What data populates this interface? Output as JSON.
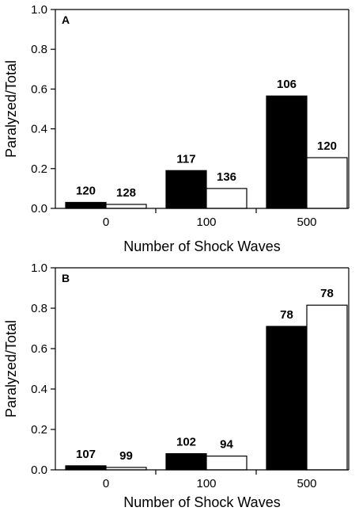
{
  "chart_data": [
    {
      "type": "bar",
      "panel_label": "A",
      "categories": [
        "0",
        "100",
        "500"
      ],
      "series": [
        {
          "values": [
            0.03,
            0.19,
            0.565
          ],
          "color": "#000000",
          "data_labels": [
            "120",
            "117",
            "106"
          ]
        },
        {
          "values": [
            0.02,
            0.1,
            0.255
          ],
          "color": "#ffffff",
          "data_labels": [
            "128",
            "136",
            "120"
          ]
        }
      ],
      "xlabel": "Number of Shock Waves",
      "ylabel": "Paralyzed/Total",
      "ylim": [
        0,
        1.0
      ],
      "yticks": [
        "0.0",
        "0.2",
        "0.4",
        "0.6",
        "0.8",
        "1.0"
      ],
      "grid": false
    },
    {
      "type": "bar",
      "panel_label": "B",
      "categories": [
        "0",
        "100",
        "500"
      ],
      "series": [
        {
          "values": [
            0.02,
            0.08,
            0.71
          ],
          "color": "#000000",
          "data_labels": [
            "107",
            "102",
            "78"
          ]
        },
        {
          "values": [
            0.012,
            0.068,
            0.815
          ],
          "color": "#ffffff",
          "data_labels": [
            "99",
            "94",
            "78"
          ]
        }
      ],
      "xlabel": "Number of Shock Waves",
      "ylabel": "Paralyzed/Total",
      "ylim": [
        0,
        1.0
      ],
      "yticks": [
        "0.0",
        "0.2",
        "0.4",
        "0.6",
        "0.8",
        "1.0"
      ],
      "grid": false
    }
  ]
}
